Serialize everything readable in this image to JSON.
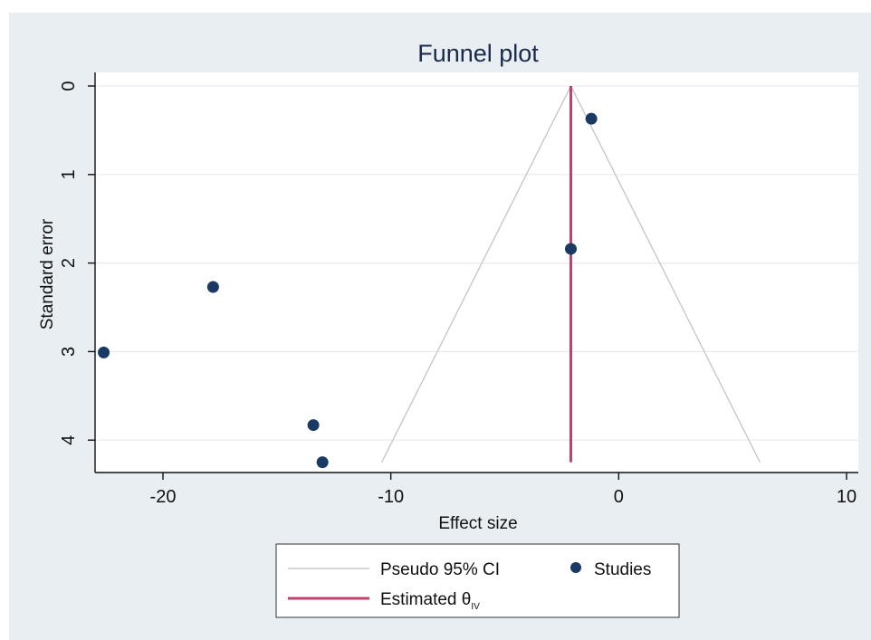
{
  "chart_data": {
    "type": "scatter",
    "title": "Funnel plot",
    "xlabel": "Effect size",
    "ylabel": "Standard error",
    "xlim": [
      -23.0,
      10.0
    ],
    "ylim": [
      0,
      4.35
    ],
    "y_reversed": true,
    "xticks": [
      {
        "value": -20,
        "label": "-20"
      },
      {
        "value": -10,
        "label": "-10"
      },
      {
        "value": 0,
        "label": "0"
      },
      {
        "value": 10,
        "label": "10"
      }
    ],
    "yticks": [
      {
        "value": 0,
        "label": "0"
      },
      {
        "value": 1,
        "label": "1"
      },
      {
        "value": 2,
        "label": "2"
      },
      {
        "value": 3,
        "label": "3"
      },
      {
        "value": 4,
        "label": "4"
      }
    ],
    "grid": true,
    "estimate": -2.1,
    "pseudo_ci": {
      "apex": {
        "x": -2.1,
        "se": 0
      },
      "base_se": 4.25,
      "left_x": -10.4,
      "right_x": 6.2
    },
    "series": [
      {
        "name": "Studies",
        "points": [
          {
            "x": -1.2,
            "se": 0.37
          },
          {
            "x": -2.1,
            "se": 1.84
          },
          {
            "x": -17.8,
            "se": 2.27
          },
          {
            "x": -22.6,
            "se": 3.01
          },
          {
            "x": -13.4,
            "se": 3.83
          },
          {
            "x": -13.0,
            "se": 4.25
          }
        ]
      }
    ],
    "legend": {
      "position": "bottom",
      "items": [
        {
          "key": "ci",
          "label": "Pseudo 95% CI"
        },
        {
          "key": "studies",
          "label": "Studies"
        },
        {
          "key": "estimate",
          "label": "Estimated θ",
          "subscript": "IV"
        }
      ]
    },
    "colors": {
      "outer_background": "#e8eef2",
      "plot_background": "#ffffff",
      "gridline": "#e6ebef",
      "point": "#1a3a63",
      "estimate_line": "#c0416a",
      "ci_line": "#c8c8c8",
      "axis": "#111111",
      "title": "#1a2a4a"
    }
  }
}
